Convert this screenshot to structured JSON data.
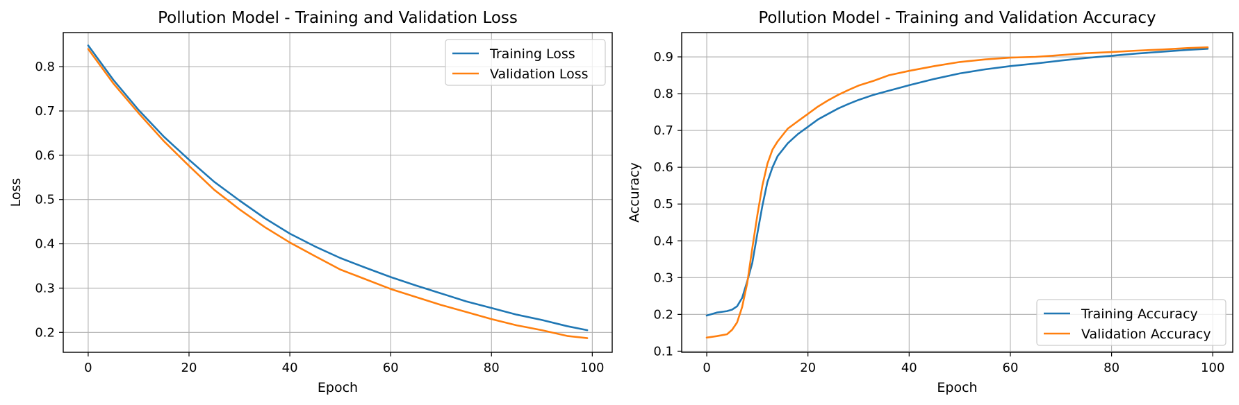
{
  "chart_data": [
    {
      "type": "line",
      "title": "Pollution Model - Training and Validation Loss",
      "xlabel": "Epoch",
      "ylabel": "Loss",
      "xlim": [
        -4.95,
        103.95
      ],
      "ylim": [
        0.155,
        0.877
      ],
      "xticks": [
        0,
        20,
        40,
        60,
        80,
        100
      ],
      "yticks": [
        0.2,
        0.3,
        0.4,
        0.5,
        0.6,
        0.7,
        0.8
      ],
      "grid": true,
      "legend_position": "top-right",
      "series": [
        {
          "name": "Training Loss",
          "color": "#1f77b4",
          "points": [
            [
              0,
              0.848
            ],
            [
              5,
              0.77
            ],
            [
              10,
              0.702
            ],
            [
              15,
              0.642
            ],
            [
              20,
              0.59
            ],
            [
              25,
              0.54
            ],
            [
              30,
              0.498
            ],
            [
              35,
              0.458
            ],
            [
              40,
              0.423
            ],
            [
              45,
              0.394
            ],
            [
              50,
              0.368
            ],
            [
              55,
              0.346
            ],
            [
              60,
              0.325
            ],
            [
              65,
              0.306
            ],
            [
              70,
              0.288
            ],
            [
              75,
              0.27
            ],
            [
              80,
              0.255
            ],
            [
              85,
              0.24
            ],
            [
              90,
              0.228
            ],
            [
              95,
              0.214
            ],
            [
              99,
              0.205
            ]
          ]
        },
        {
          "name": "Validation Loss",
          "color": "#ff7f0e",
          "points": [
            [
              0,
              0.84
            ],
            [
              5,
              0.762
            ],
            [
              10,
              0.695
            ],
            [
              15,
              0.632
            ],
            [
              20,
              0.576
            ],
            [
              25,
              0.522
            ],
            [
              30,
              0.478
            ],
            [
              35,
              0.438
            ],
            [
              40,
              0.403
            ],
            [
              45,
              0.372
            ],
            [
              50,
              0.342
            ],
            [
              55,
              0.32
            ],
            [
              60,
              0.298
            ],
            [
              65,
              0.28
            ],
            [
              70,
              0.262
            ],
            [
              75,
              0.246
            ],
            [
              80,
              0.23
            ],
            [
              85,
              0.216
            ],
            [
              90,
              0.205
            ],
            [
              95,
              0.192
            ],
            [
              99,
              0.187
            ]
          ]
        }
      ]
    },
    {
      "type": "line",
      "title": "Pollution Model - Training and Validation Accuracy",
      "xlabel": "Epoch",
      "ylabel": "Accuracy",
      "xlim": [
        -4.95,
        103.95
      ],
      "ylim": [
        0.097,
        0.966
      ],
      "xticks": [
        0,
        20,
        40,
        60,
        80,
        100
      ],
      "yticks": [
        0.1,
        0.2,
        0.3,
        0.4,
        0.5,
        0.6,
        0.7,
        0.8,
        0.9
      ],
      "grid": true,
      "legend_position": "lower-right",
      "series": [
        {
          "name": "Training Accuracy",
          "color": "#1f77b4",
          "points": [
            [
              0,
              0.197
            ],
            [
              2,
              0.205
            ],
            [
              4,
              0.209
            ],
            [
              5,
              0.213
            ],
            [
              6,
              0.222
            ],
            [
              7,
              0.245
            ],
            [
              8,
              0.29
            ],
            [
              9,
              0.34
            ],
            [
              10,
              0.42
            ],
            [
              11,
              0.495
            ],
            [
              12,
              0.56
            ],
            [
              13,
              0.6
            ],
            [
              14,
              0.63
            ],
            [
              16,
              0.665
            ],
            [
              18,
              0.69
            ],
            [
              20,
              0.71
            ],
            [
              22,
              0.73
            ],
            [
              24,
              0.745
            ],
            [
              26,
              0.76
            ],
            [
              28,
              0.772
            ],
            [
              30,
              0.783
            ],
            [
              33,
              0.797
            ],
            [
              36,
              0.808
            ],
            [
              40,
              0.823
            ],
            [
              45,
              0.84
            ],
            [
              50,
              0.855
            ],
            [
              55,
              0.866
            ],
            [
              60,
              0.875
            ],
            [
              65,
              0.882
            ],
            [
              70,
              0.89
            ],
            [
              75,
              0.897
            ],
            [
              80,
              0.903
            ],
            [
              85,
              0.909
            ],
            [
              90,
              0.914
            ],
            [
              95,
              0.919
            ],
            [
              99,
              0.922
            ]
          ]
        },
        {
          "name": "Validation Accuracy",
          "color": "#ff7f0e",
          "points": [
            [
              0,
              0.137
            ],
            [
              2,
              0.141
            ],
            [
              4,
              0.146
            ],
            [
              5,
              0.158
            ],
            [
              6,
              0.178
            ],
            [
              7,
              0.22
            ],
            [
              8,
              0.285
            ],
            [
              9,
              0.38
            ],
            [
              10,
              0.47
            ],
            [
              11,
              0.55
            ],
            [
              12,
              0.61
            ],
            [
              13,
              0.648
            ],
            [
              14,
              0.67
            ],
            [
              16,
              0.705
            ],
            [
              18,
              0.725
            ],
            [
              20,
              0.745
            ],
            [
              22,
              0.765
            ],
            [
              24,
              0.782
            ],
            [
              26,
              0.797
            ],
            [
              28,
              0.81
            ],
            [
              30,
              0.822
            ],
            [
              33,
              0.835
            ],
            [
              36,
              0.85
            ],
            [
              40,
              0.862
            ],
            [
              45,
              0.875
            ],
            [
              50,
              0.886
            ],
            [
              55,
              0.893
            ],
            [
              60,
              0.898
            ],
            [
              65,
              0.9
            ],
            [
              70,
              0.905
            ],
            [
              75,
              0.91
            ],
            [
              80,
              0.913
            ],
            [
              85,
              0.917
            ],
            [
              90,
              0.92
            ],
            [
              95,
              0.924
            ],
            [
              99,
              0.926
            ]
          ]
        }
      ]
    }
  ]
}
